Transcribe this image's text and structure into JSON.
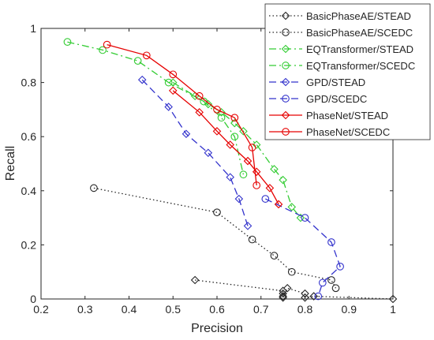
{
  "chart_data": {
    "type": "line",
    "title": "",
    "xlabel": "Precision",
    "ylabel": "Recall",
    "xlim": [
      0.2,
      1
    ],
    "ylim": [
      0,
      1
    ],
    "x_ticks": [
      "0.2",
      "0.3",
      "0.4",
      "0.5",
      "0.6",
      "0.7",
      "0.8",
      "0.9",
      "1"
    ],
    "y_ticks": [
      "0",
      "0.2",
      "0.4",
      "0.6",
      "0.8",
      "1"
    ],
    "grid": false,
    "legend_position": "top-right",
    "series": [
      {
        "name": "BasicPhaseAE/STEAD",
        "color": "#262626",
        "dash": "dotted",
        "marker": "diamond",
        "x": [
          0.55,
          0.75,
          0.75,
          0.75,
          0.75,
          0.76,
          0.8,
          0.8,
          0.82,
          1.0
        ],
        "y": [
          0.07,
          0.03,
          0.02,
          0.01,
          0.005,
          0.04,
          0.02,
          0.005,
          0.01,
          0.0
        ]
      },
      {
        "name": "BasicPhaseAE/SCEDC",
        "color": "#262626",
        "dash": "dotted",
        "marker": "circle",
        "x": [
          0.32,
          0.6,
          0.68,
          0.73,
          0.77,
          0.86,
          0.87
        ],
        "y": [
          0.41,
          0.32,
          0.22,
          0.16,
          0.1,
          0.07,
          0.04
        ]
      },
      {
        "name": "EQTransformer/STEAD",
        "color": "#33cc33",
        "dash": "dashdot",
        "marker": "diamond",
        "x": [
          0.5,
          0.55,
          0.58,
          0.61,
          0.64,
          0.66,
          0.69,
          0.73,
          0.75,
          0.77,
          0.79
        ],
        "y": [
          0.8,
          0.75,
          0.72,
          0.69,
          0.65,
          0.62,
          0.57,
          0.48,
          0.44,
          0.34,
          0.3
        ]
      },
      {
        "name": "EQTransformer/SCEDC",
        "color": "#33cc33",
        "dash": "dashdot",
        "marker": "circle",
        "x": [
          0.26,
          0.34,
          0.42,
          0.49,
          0.57,
          0.61,
          0.64,
          0.66
        ],
        "y": [
          0.95,
          0.92,
          0.88,
          0.8,
          0.73,
          0.67,
          0.6,
          0.46
        ]
      },
      {
        "name": "GPD/STEAD",
        "color": "#3333cc",
        "dash": "dashed",
        "marker": "diamond",
        "x": [
          0.43,
          0.49,
          0.53,
          0.58,
          0.63,
          0.65,
          0.67
        ],
        "y": [
          0.81,
          0.71,
          0.61,
          0.54,
          0.45,
          0.37,
          0.27
        ]
      },
      {
        "name": "GPD/SCEDC",
        "color": "#3333cc",
        "dash": "dashed",
        "marker": "circle",
        "x": [
          0.71,
          0.8,
          0.86,
          0.88,
          0.84,
          0.83
        ],
        "y": [
          0.37,
          0.3,
          0.21,
          0.12,
          0.06,
          0.01
        ]
      },
      {
        "name": "PhaseNet/STEAD",
        "color": "#e60000",
        "dash": "solid",
        "marker": "diamond",
        "x": [
          0.5,
          0.56,
          0.6,
          0.63,
          0.67,
          0.69,
          0.72,
          0.74
        ],
        "y": [
          0.77,
          0.69,
          0.62,
          0.57,
          0.51,
          0.47,
          0.41,
          0.35
        ]
      },
      {
        "name": "PhaseNet/SCEDC",
        "color": "#e60000",
        "dash": "solid",
        "marker": "circle",
        "x": [
          0.35,
          0.44,
          0.5,
          0.56,
          0.6,
          0.64,
          0.68,
          0.69
        ],
        "y": [
          0.94,
          0.9,
          0.83,
          0.75,
          0.7,
          0.67,
          0.56,
          0.42
        ]
      }
    ]
  }
}
